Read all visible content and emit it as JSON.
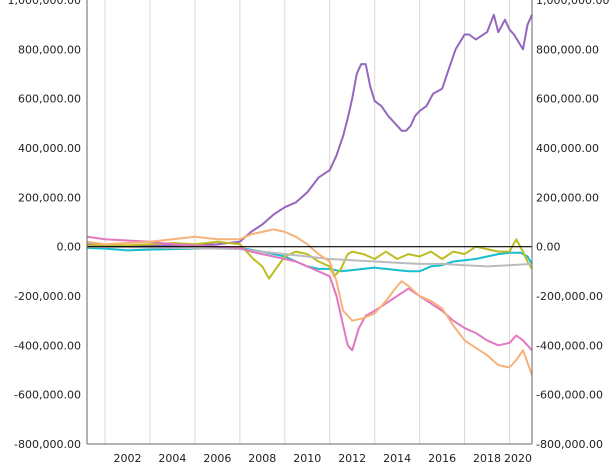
{
  "chart_data": {
    "type": "line",
    "title": "",
    "xlabel": "",
    "ylabel": "",
    "xlim": [
      2000.2,
      2020.0
    ],
    "ylim": [
      -800000,
      1000000
    ],
    "x_ticks": [
      2002,
      2004,
      2006,
      2008,
      2010,
      2012,
      2014,
      2016,
      2018,
      2020
    ],
    "x_tick_labels": [
      "2002",
      "2004",
      "2006",
      "2008",
      "2010",
      "2012",
      "2014",
      "2016",
      "2018",
      "2020"
    ],
    "y_ticks": [
      -800000,
      -600000,
      -400000,
      -200000,
      0,
      200000,
      400000,
      600000,
      800000,
      1000000
    ],
    "y_tick_labels": [
      "-800,000.00",
      "-600,000.00",
      "-400,000.00",
      "-200,000.00",
      "0.00",
      "200,000.00",
      "400,000.00",
      "600,000.00",
      "800,000.00",
      "1,000,000.00"
    ],
    "y_axis_sides": "left and right",
    "grid": "vertical lines at x ticks",
    "legend": "none",
    "series": [
      {
        "color": "#9467bd",
        "x": [
          2000.2,
          2001,
          2002,
          2003,
          2004,
          2005,
          2006,
          2007,
          2007.5,
          2008,
          2008.5,
          2009,
          2009.5,
          2010,
          2010.5,
          2011,
          2011.3,
          2011.6,
          2011.8,
          2012,
          2012.2,
          2012.4,
          2012.6,
          2012.8,
          2013,
          2013.3,
          2013.6,
          2014,
          2014.2,
          2014.4,
          2014.6,
          2014.8,
          2015,
          2015.3,
          2015.6,
          2016,
          2016.3,
          2016.6,
          2017,
          2017.2,
          2017.5,
          2018,
          2018.3,
          2018.5,
          2018.8,
          2019,
          2019.2,
          2019.4,
          2019.6,
          2019.8,
          2020
        ],
        "y": [
          10000,
          5000,
          3000,
          3000,
          5000,
          8000,
          10000,
          20000,
          60000,
          90000,
          130000,
          160000,
          180000,
          220000,
          280000,
          310000,
          370000,
          450000,
          520000,
          600000,
          700000,
          740000,
          740000,
          650000,
          590000,
          570000,
          530000,
          490000,
          470000,
          470000,
          490000,
          530000,
          550000,
          570000,
          620000,
          640000,
          720000,
          800000,
          860000,
          860000,
          840000,
          870000,
          940000,
          870000,
          920000,
          880000,
          860000,
          830000,
          800000,
          900000,
          940000
        ]
      },
      {
        "color": "#17becf",
        "x": [
          2000.2,
          2001,
          2002,
          2003,
          2004,
          2005,
          2006,
          2007,
          2008,
          2009,
          2009.5,
          2010,
          2010.5,
          2011,
          2011.5,
          2012,
          2012.5,
          2013,
          2013.5,
          2014,
          2014.5,
          2015,
          2015.5,
          2016,
          2016.5,
          2017,
          2017.5,
          2018,
          2018.5,
          2019,
          2019.5,
          2019.8,
          2020
        ],
        "y": [
          -5000,
          -8000,
          -15000,
          -12000,
          -10000,
          -8000,
          -6000,
          -5000,
          -20000,
          -40000,
          -60000,
          -80000,
          -90000,
          -90000,
          -100000,
          -95000,
          -90000,
          -85000,
          -90000,
          -95000,
          -100000,
          -100000,
          -80000,
          -75000,
          -60000,
          -55000,
          -50000,
          -40000,
          -30000,
          -25000,
          -25000,
          -40000,
          -70000
        ]
      },
      {
        "color": "#bcbd22",
        "x": [
          2000.2,
          2001,
          2002,
          2003,
          2004,
          2005,
          2006,
          2007,
          2007.3,
          2007.6,
          2008,
          2008.3,
          2008.6,
          2009,
          2009.5,
          2010,
          2010.5,
          2011,
          2011.2,
          2011.5,
          2011.8,
          2012,
          2012.5,
          2013,
          2013.5,
          2014,
          2014.5,
          2015,
          2015.5,
          2016,
          2016.5,
          2017,
          2017.5,
          2018,
          2018.5,
          2019,
          2019.3,
          2019.6,
          2019.8,
          2020
        ],
        "y": [
          5000,
          8000,
          5000,
          10000,
          15000,
          10000,
          20000,
          10000,
          -20000,
          -50000,
          -80000,
          -130000,
          -90000,
          -40000,
          -20000,
          -30000,
          -60000,
          -80000,
          -120000,
          -90000,
          -30000,
          -20000,
          -30000,
          -50000,
          -20000,
          -50000,
          -30000,
          -40000,
          -20000,
          -50000,
          -20000,
          -30000,
          0,
          -10000,
          -20000,
          -20000,
          30000,
          -20000,
          -60000,
          -90000
        ]
      },
      {
        "color": "#bbbbbb",
        "x": [
          2000.2,
          2002,
          2004,
          2006,
          2007,
          2008,
          2009,
          2010,
          2011,
          2012,
          2013,
          2014,
          2015,
          2016,
          2017,
          2018,
          2019,
          2020
        ],
        "y": [
          0,
          -2000,
          -5000,
          -8000,
          -10000,
          -20000,
          -30000,
          -40000,
          -50000,
          -55000,
          -60000,
          -65000,
          -70000,
          -70000,
          -75000,
          -80000,
          -75000,
          -70000
        ]
      },
      {
        "color": "#e377c2",
        "x": [
          2000.2,
          2001,
          2002,
          2003,
          2004,
          2005,
          2006,
          2007,
          2007.5,
          2008,
          2008.5,
          2009,
          2009.5,
          2010,
          2010.5,
          2011,
          2011.3,
          2011.6,
          2011.8,
          2012,
          2012.3,
          2012.6,
          2013,
          2013.5,
          2014,
          2014.5,
          2015,
          2015.5,
          2016,
          2016.5,
          2017,
          2017.5,
          2018,
          2018.5,
          2019,
          2019.3,
          2019.6,
          2020
        ],
        "y": [
          40000,
          30000,
          25000,
          20000,
          10000,
          5000,
          0,
          -5000,
          -20000,
          -30000,
          -40000,
          -50000,
          -60000,
          -80000,
          -100000,
          -120000,
          -200000,
          -320000,
          -400000,
          -420000,
          -330000,
          -280000,
          -260000,
          -230000,
          -200000,
          -170000,
          -200000,
          -230000,
          -260000,
          -300000,
          -330000,
          -350000,
          -380000,
          -400000,
          -390000,
          -360000,
          -380000,
          -420000
        ]
      },
      {
        "color": "#f7b27a",
        "x": [
          2000.2,
          2001,
          2002,
          2003,
          2004,
          2005,
          2006,
          2007,
          2007.5,
          2008,
          2008.5,
          2009,
          2009.5,
          2010,
          2010.5,
          2011,
          2011.3,
          2011.6,
          2012,
          2012.5,
          2013,
          2013.5,
          2014,
          2014.2,
          2014.5,
          2015,
          2015.5,
          2016,
          2016.5,
          2017,
          2017.5,
          2018,
          2018.5,
          2019,
          2019.3,
          2019.6,
          2019.8,
          2020
        ],
        "y": [
          20000,
          10000,
          15000,
          20000,
          30000,
          40000,
          30000,
          30000,
          50000,
          60000,
          70000,
          60000,
          40000,
          10000,
          -30000,
          -60000,
          -140000,
          -260000,
          -300000,
          -290000,
          -270000,
          -220000,
          -160000,
          -140000,
          -160000,
          -200000,
          -220000,
          -250000,
          -320000,
          -380000,
          -410000,
          -440000,
          -480000,
          -490000,
          -460000,
          -420000,
          -470000,
          -520000
        ]
      }
    ]
  }
}
